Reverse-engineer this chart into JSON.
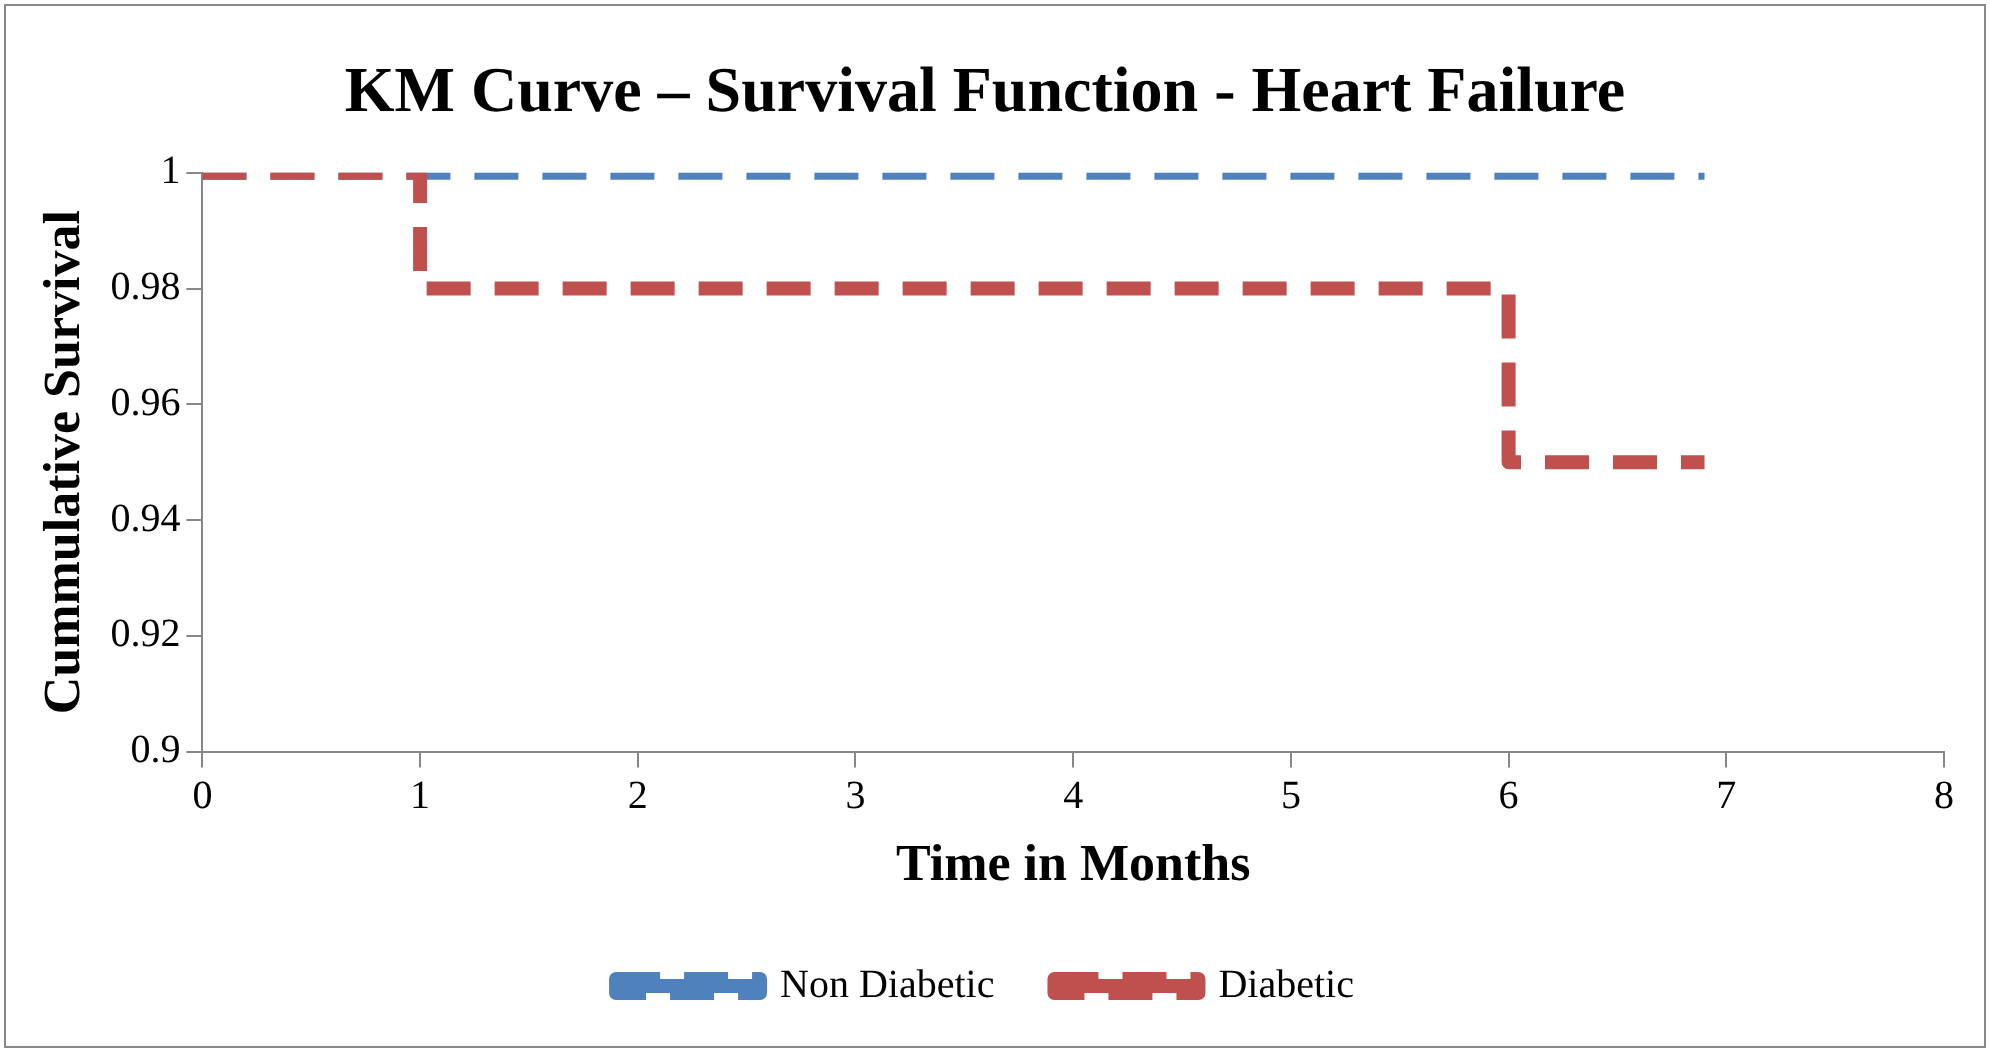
{
  "chart_data": {
    "type": "step",
    "title": "KM Curve – Survival Function - Heart Failure",
    "xlabel": "Time in Months",
    "ylabel": "Cummulative Survival",
    "xlim": [
      0,
      8
    ],
    "xticks": [
      0,
      1,
      2,
      3,
      4,
      5,
      6,
      7,
      8
    ],
    "ylim": [
      0.9,
      1
    ],
    "yticks": [
      0.9,
      0.92,
      0.94,
      0.96,
      0.98,
      1
    ],
    "grid": false,
    "legend": "bottom",
    "marker": "none",
    "line_style": "dashed",
    "series": [
      {
        "name": "Non Diabetic",
        "color": "#4f81bd",
        "x": [
          0,
          6.9
        ],
        "values": [
          1,
          1
        ]
      },
      {
        "name": "Diabetic",
        "color": "#c0504d",
        "x": [
          0,
          1,
          6,
          6.9
        ],
        "values": [
          1,
          0.98,
          0.95,
          0.95
        ]
      }
    ]
  }
}
